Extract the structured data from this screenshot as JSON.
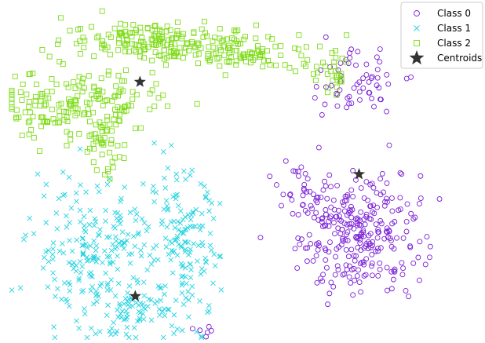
{
  "chart_data": {
    "type": "scatter",
    "title": "",
    "xlabel": "",
    "ylabel": "",
    "axes_visible": false,
    "grid": false,
    "legend_position": "top-right",
    "xlim": [
      0,
      100
    ],
    "ylim": [
      0,
      100
    ],
    "series": [
      {
        "name": "Class 0",
        "marker": "open-circle",
        "color": "#7a1fd6",
        "clusters": [
          {
            "cx": 75,
            "cy": 32,
            "sx": 6.5,
            "sy": 9,
            "n": 280
          },
          {
            "cx": 74,
            "cy": 78,
            "sx": 5,
            "sy": 5,
            "n": 60
          },
          {
            "cx": 63,
            "cy": 44,
            "sx": 3,
            "sy": 6,
            "n": 30
          },
          {
            "cx": 43,
            "cy": 3,
            "sx": 1.5,
            "sy": 2,
            "n": 6
          }
        ]
      },
      {
        "name": "Class 1",
        "marker": "x",
        "color": "#22d3e0",
        "clusters": [
          {
            "cx": 18,
            "cy": 28,
            "sx": 7,
            "sy": 10,
            "n": 200
          },
          {
            "cx": 37,
            "cy": 28,
            "sx": 4,
            "sy": 11,
            "n": 140
          },
          {
            "cx": 28,
            "cy": 9,
            "sx": 7,
            "sy": 4,
            "n": 90
          }
        ]
      },
      {
        "name": "Class 2",
        "marker": "open-square",
        "color": "#7fdc1a",
        "clusters": [
          {
            "cx": 30,
            "cy": 91,
            "sx": 9,
            "sy": 3,
            "n": 150
          },
          {
            "cx": 50,
            "cy": 87,
            "sx": 9,
            "sy": 3,
            "n": 110
          },
          {
            "cx": 12,
            "cy": 71,
            "sx": 7,
            "sy": 5,
            "n": 150
          },
          {
            "cx": 26,
            "cy": 70,
            "sx": 4,
            "sy": 4,
            "n": 30
          },
          {
            "cx": 20,
            "cy": 59,
            "sx": 2,
            "sy": 5,
            "n": 40
          },
          {
            "cx": 69,
            "cy": 80,
            "sx": 3,
            "sy": 3,
            "n": 30
          }
        ]
      }
    ],
    "centroids": {
      "name": "Centroids",
      "marker": "star",
      "color": "#333333",
      "points": [
        {
          "x": 28,
          "y": 78
        },
        {
          "x": 75,
          "y": 50
        },
        {
          "x": 27,
          "y": 13
        }
      ]
    },
    "legend": [
      {
        "label": "Class 0",
        "marker": "open-circle",
        "color": "#7a1fd6"
      },
      {
        "label": "Class 1",
        "marker": "x",
        "color": "#22d3e0"
      },
      {
        "label": "Class 2",
        "marker": "open-square",
        "color": "#7fdc1a"
      },
      {
        "label": "Centroids",
        "marker": "star",
        "color": "#333333"
      }
    ]
  }
}
